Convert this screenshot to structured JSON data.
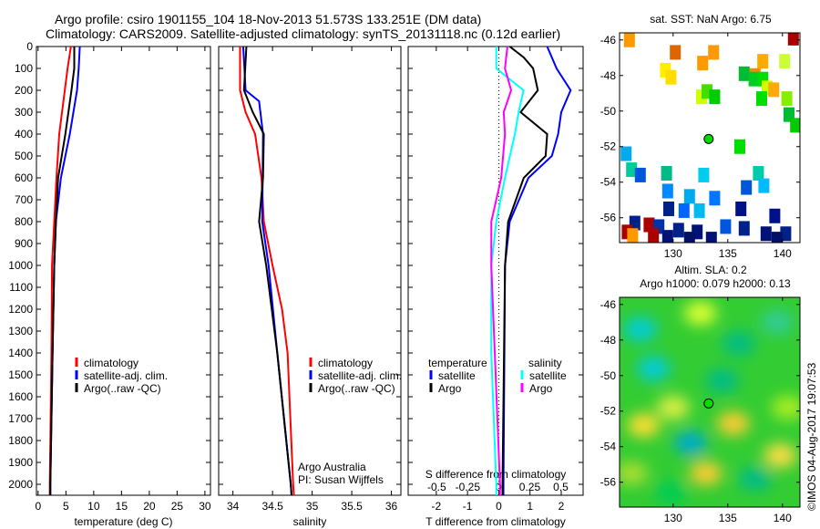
{
  "title_line1": "Argo profile: csiro 1901155_104 18-Nov-2013 51.573S 133.251E (DM data)",
  "title_line2": "Climatology: CARS2009. Satellite-adjusted climatology: synTS_20131118.nc (0.12d earlier)",
  "credit": "©IMOS 04-Aug-2017 19:07:53",
  "colors": {
    "climatology": "#ff0000",
    "satellite": "#0000ff",
    "argo": "#000000",
    "s_satellite": "#00ffff",
    "s_argo": "#ff00ff"
  },
  "chart_data": [
    {
      "type": "line",
      "id": "temperature",
      "xlabel": "temperature (deg C)",
      "ylabel": "",
      "xlim": [
        -0.3,
        31
      ],
      "ylim": [
        2050,
        0
      ],
      "xticks": [
        0,
        5,
        10,
        15,
        20,
        25,
        30
      ],
      "yticks": [
        0,
        100,
        200,
        300,
        400,
        500,
        600,
        700,
        800,
        900,
        1000,
        1100,
        1200,
        1300,
        1400,
        1500,
        1600,
        1700,
        1800,
        1900,
        2000
      ],
      "legend": [
        "climatology",
        "satellite-adj. clim.",
        "Argo(..raw -QC)"
      ],
      "series": [
        {
          "name": "climatology",
          "color": "#ff0000",
          "depth": [
            0,
            100,
            200,
            400,
            600,
            800,
            1000,
            1400,
            2000,
            2050
          ],
          "values": [
            5.9,
            5.3,
            4.8,
            3.8,
            3.3,
            2.9,
            2.5,
            2.4,
            2.1,
            2.1
          ]
        },
        {
          "name": "satellite-adj. clim.",
          "color": "#0000ff",
          "depth": [
            0,
            100,
            200,
            400,
            600,
            800,
            1000,
            1400,
            2000,
            2050
          ],
          "values": [
            7.5,
            7.3,
            7.0,
            5.7,
            4.1,
            3.2,
            2.9,
            2.6,
            2.2,
            2.2
          ]
        },
        {
          "name": "Argo(..raw -QC)",
          "color": "#000000",
          "depth": [
            0,
            100,
            200,
            400,
            600,
            800,
            1000,
            1400,
            2000,
            2050
          ],
          "values": [
            6.5,
            6.5,
            6.0,
            4.9,
            3.6,
            3.2,
            2.9,
            2.6,
            2.2,
            2.2
          ]
        }
      ]
    },
    {
      "type": "line",
      "id": "salinity",
      "xlabel": "salinity",
      "xlim": [
        33.82,
        36.12
      ],
      "ylim": [
        2050,
        0
      ],
      "xticks": [
        34,
        34.5,
        35,
        35.5,
        36
      ],
      "legend": [
        "climatology",
        "satellite-adj. clim.",
        "Argo(..raw -QC)"
      ],
      "annotations": [
        "Argo Australia",
        "PI: Susan Wijffels"
      ],
      "series": [
        {
          "name": "climatology",
          "color": "#ff0000",
          "depth": [
            0,
            200,
            300,
            400,
            600,
            800,
            1000,
            1200,
            1400,
            2000,
            2050
          ],
          "values": [
            34.09,
            34.09,
            34.16,
            34.28,
            34.36,
            34.39,
            34.5,
            34.62,
            34.69,
            34.76,
            34.77
          ]
        },
        {
          "name": "satellite-adj. clim.",
          "color": "#0000ff",
          "depth": [
            0,
            200,
            250,
            400,
            800,
            1000,
            1400,
            2000,
            2050
          ],
          "values": [
            34.13,
            34.16,
            34.33,
            34.38,
            34.37,
            34.45,
            34.56,
            34.73,
            34.74
          ]
        },
        {
          "name": "Argo(..raw -QC)",
          "color": "#000000",
          "depth": [
            0,
            200,
            300,
            400,
            600,
            800,
            1000,
            1400,
            2000,
            2050
          ],
          "values": [
            34.17,
            34.14,
            34.25,
            34.39,
            34.38,
            34.33,
            34.42,
            34.56,
            34.73,
            34.74
          ]
        }
      ]
    },
    {
      "type": "line",
      "id": "difference",
      "xlabel": "T difference from climatology",
      "x2label": "S difference from climatology",
      "xlim": [
        -2.9,
        2.7
      ],
      "x2lim": [
        -0.73,
        0.68
      ],
      "ylim": [
        2050,
        0
      ],
      "xticks": [
        -2,
        -1,
        0,
        1,
        2
      ],
      "x2ticks": [
        -0.5,
        -0.25,
        0,
        0.25,
        0.5
      ],
      "x2ticklabels": [
        "-0.5",
        "-0.25",
        "0",
        "0.25",
        "0.5"
      ],
      "legend_headers": [
        "temperature",
        "salinity"
      ],
      "legend": [
        "satellite",
        "Argo",
        "satellite",
        "Argo"
      ],
      "series": [
        {
          "name": "T satellite",
          "axis": "T",
          "color": "#0000ff",
          "depth": [
            0,
            100,
            200,
            300,
            400,
            500,
            600,
            800,
            1000,
            2000,
            2050
          ],
          "values": [
            1.55,
            1.85,
            2.3,
            2.0,
            1.9,
            1.7,
            0.95,
            0.35,
            0.2,
            0.15,
            0.15
          ]
        },
        {
          "name": "T Argo",
          "axis": "T",
          "color": "#000000",
          "depth": [
            0,
            50,
            100,
            200,
            300,
            400,
            500,
            600,
            800,
            1000,
            2000,
            2050
          ],
          "values": [
            0.35,
            0.8,
            1.1,
            1.25,
            0.7,
            1.55,
            1.5,
            0.8,
            0.3,
            0.2,
            0.12,
            0.12
          ]
        },
        {
          "name": "S satellite",
          "axis": "S",
          "color": "#00ffff",
          "depth": [
            0,
            100,
            200,
            300,
            400,
            600,
            800,
            1000,
            1400,
            2000,
            2050
          ],
          "values": [
            -0.02,
            -0.02,
            0.2,
            0.16,
            0.13,
            0.05,
            -0.02,
            -0.06,
            -0.06,
            -0.02,
            -0.02
          ]
        },
        {
          "name": "S Argo",
          "axis": "S",
          "color": "#ff00ff",
          "depth": [
            0,
            100,
            200,
            300,
            400,
            600,
            800,
            1000,
            2000,
            2050
          ],
          "values": [
            0.07,
            0.05,
            0.1,
            0.04,
            0.05,
            0.02,
            -0.06,
            -0.06,
            0.01,
            0.01
          ]
        }
      ]
    },
    {
      "type": "heatmap",
      "id": "sst-map",
      "title": "sat. SST: NaN Argo: 6.75",
      "xlim": [
        125.1,
        141.6
      ],
      "ylim": [
        -57.4,
        -45.6
      ],
      "xticks": [
        130,
        135,
        140
      ],
      "yticks": [
        -46,
        -48,
        -50,
        -52,
        -54,
        -56
      ],
      "argo_position": [
        133.25,
        -51.57
      ],
      "patches": [
        [
          126,
          -46,
          "#ff9900"
        ],
        [
          130.2,
          -46.7,
          "#dd6600"
        ],
        [
          132.7,
          -47.3,
          "#ff9900"
        ],
        [
          133.7,
          -46.7,
          "#ff9900"
        ],
        [
          129.3,
          -47.7,
          "#ffee00"
        ],
        [
          129.8,
          -48.1,
          "#ffdd00"
        ],
        [
          141,
          -45.9,
          "#aa0000"
        ],
        [
          138.2,
          -47.2,
          "#ffaa00"
        ],
        [
          137.5,
          -48,
          "#ff8800"
        ],
        [
          140.2,
          -47.2,
          "#ccff33"
        ],
        [
          136.5,
          -47.9,
          "#00bb33"
        ],
        [
          137.4,
          -48.2,
          "#00cc22"
        ],
        [
          138.2,
          -48.2,
          "#00dd00"
        ],
        [
          138.6,
          -48.7,
          "#ccff00"
        ],
        [
          139.2,
          -48.8,
          "#ffaa00"
        ],
        [
          132.6,
          -49.2,
          "#ccff00"
        ],
        [
          133.1,
          -48.9,
          "#44dd00"
        ],
        [
          133.8,
          -49.2,
          "#00cc00"
        ],
        [
          138.1,
          -49.3,
          "#00dd00"
        ],
        [
          140.4,
          -49.3,
          "#88ee00"
        ],
        [
          140.6,
          -50.2,
          "#00bb33"
        ],
        [
          141.2,
          -50.8,
          "#00cc00"
        ],
        [
          136.1,
          -52.0,
          "#00dd00"
        ],
        [
          125.7,
          -52.4,
          "#00aaee"
        ],
        [
          126.2,
          -53.3,
          "#00cc99"
        ],
        [
          127,
          -53.6,
          "#0055dd"
        ],
        [
          129.4,
          -53.5,
          "#00bb88"
        ],
        [
          132.8,
          -53.6,
          "#00ccee"
        ],
        [
          137.8,
          -53.5,
          "#00ccaa"
        ],
        [
          129.5,
          -54.5,
          "#0088ff"
        ],
        [
          131.5,
          -54.8,
          "#00aaee"
        ],
        [
          133.8,
          -54.9,
          "#0077ff"
        ],
        [
          136.7,
          -54.3,
          "#0055dd"
        ],
        [
          138.3,
          -54.2,
          "#00bbff"
        ],
        [
          129.6,
          -55.5,
          "#002288"
        ],
        [
          131,
          -55.6,
          "#0066ff"
        ],
        [
          132.4,
          -55.6,
          "#00bbee"
        ],
        [
          136.2,
          -55.5,
          "#001188"
        ],
        [
          139.3,
          -55.9,
          "#001188"
        ],
        [
          126.5,
          -56.3,
          "#002288"
        ],
        [
          127.8,
          -56.4,
          "#aa0000"
        ],
        [
          128.7,
          -56.5,
          "#0033aa"
        ],
        [
          130.5,
          -56.7,
          "#002288"
        ],
        [
          132.2,
          -56.8,
          "#001177"
        ],
        [
          134.8,
          -56.5,
          "#0055dd"
        ],
        [
          136.5,
          -56.6,
          "#002288"
        ],
        [
          138.5,
          -56.9,
          "#001177"
        ],
        [
          140.3,
          -56.9,
          "#002288"
        ],
        [
          125.8,
          -56.8,
          "#aa0000"
        ],
        [
          126.3,
          -57,
          "#ff9900"
        ],
        [
          128.2,
          -57,
          "#aa0000"
        ],
        [
          129.5,
          -57.1,
          "#001177"
        ],
        [
          131.5,
          -57.2,
          "#001166"
        ],
        [
          133.5,
          -57.2,
          "#001177"
        ],
        [
          139.5,
          -57.2,
          "#001166"
        ]
      ]
    },
    {
      "type": "heatmap",
      "id": "sla-map",
      "title_line1": "Altim. SLA: 0.2",
      "title_line2": "Argo h1000: 0.079 h2000: 0.13",
      "xlim": [
        125.1,
        141.6
      ],
      "ylim": [
        -57.4,
        -45.6
      ],
      "xticks": [
        130,
        135,
        140
      ],
      "yticks": [
        -46,
        -48,
        -50,
        -52,
        -54,
        -56
      ],
      "argo_position": [
        133.25,
        -51.57
      ],
      "blobs": [
        [
          127,
          -47.4,
          "#00ccdd"
        ],
        [
          132.5,
          -46.5,
          "#ddff33"
        ],
        [
          136,
          -48.2,
          "#00bb88"
        ],
        [
          139.5,
          -47,
          "#33cc99"
        ],
        [
          134.5,
          -50.3,
          "#00bb88"
        ],
        [
          128.2,
          -49.6,
          "#00ccdd"
        ],
        [
          131.6,
          -53.8,
          "#00aacc"
        ],
        [
          127.3,
          -52.8,
          "#ffdd33"
        ],
        [
          130,
          -51.8,
          "#ddee44"
        ],
        [
          135.5,
          -52.7,
          "#ffcc33"
        ],
        [
          133,
          -55.5,
          "#ffcc33"
        ],
        [
          139.8,
          -54.5,
          "#ffdd44"
        ],
        [
          137.5,
          -55.8,
          "#00bb88"
        ],
        [
          126.2,
          -55.5,
          "#aadd33"
        ],
        [
          140.5,
          -51.8,
          "#aaee22"
        ],
        [
          129.8,
          -56.6,
          "#00cc55"
        ]
      ]
    }
  ]
}
